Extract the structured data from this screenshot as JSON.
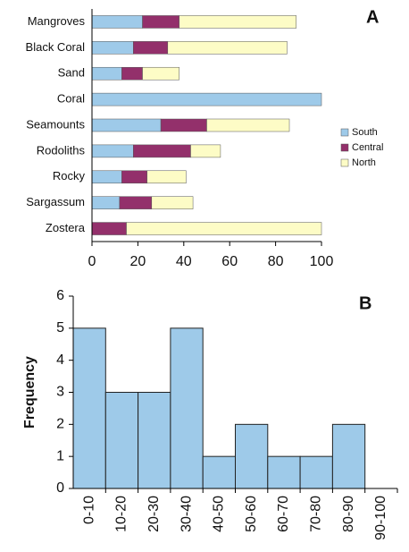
{
  "chart_data": [
    {
      "type": "stacked-barh",
      "label": "A",
      "categories": [
        "Mangroves",
        "Black Coral",
        "Sand",
        "Coral",
        "Seamounts",
        "Rodoliths",
        "Rocky",
        "Sargassum",
        "Zostera"
      ],
      "series": [
        {
          "name": "South",
          "color": "#9ecae9",
          "values": [
            22,
            18,
            13,
            100,
            30,
            18,
            13,
            12,
            0
          ]
        },
        {
          "name": "Central",
          "color": "#93306b",
          "values": [
            16,
            15,
            9,
            0,
            20,
            25,
            11,
            14,
            15
          ]
        },
        {
          "name": "North",
          "color": "#fdfcc6",
          "values": [
            51,
            52,
            16,
            0,
            36,
            13,
            17,
            18,
            85
          ]
        }
      ],
      "xlim": [
        0,
        100
      ],
      "xticks": [
        0,
        20,
        40,
        60,
        80,
        100
      ],
      "legend": "right"
    },
    {
      "type": "bar",
      "label": "B",
      "ylabel": "Frequency",
      "categories": [
        "0-10",
        "10-20",
        "20-30",
        "30-40",
        "40-50",
        "50-60",
        "60-70",
        "70-80",
        "80-90",
        "90-100"
      ],
      "values": [
        5,
        3,
        3,
        5,
        1,
        2,
        1,
        1,
        2,
        0
      ],
      "color": "#9ecae9",
      "ylim": [
        0,
        6
      ],
      "yticks": [
        0,
        1,
        2,
        3,
        4,
        5,
        6
      ]
    }
  ]
}
